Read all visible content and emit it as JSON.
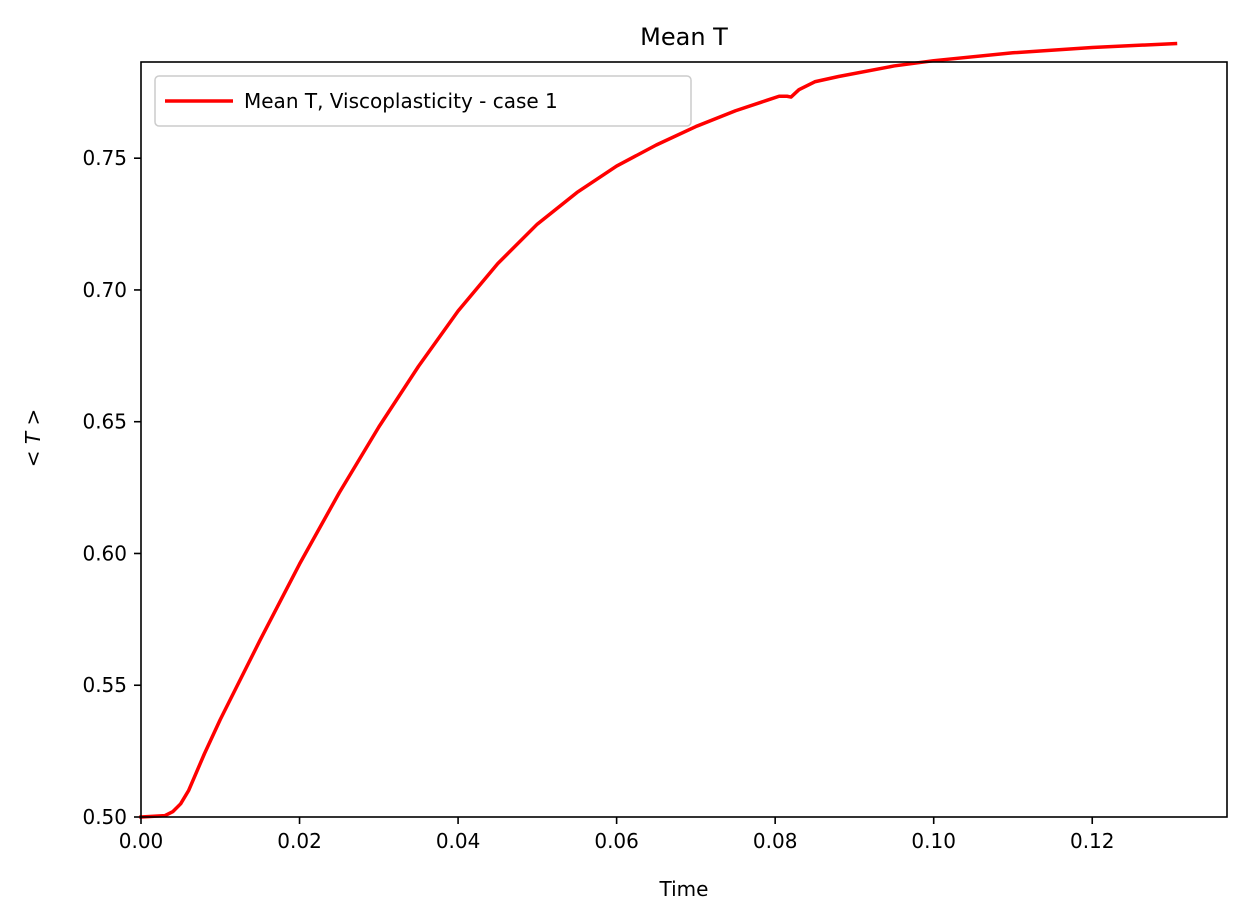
{
  "chart_data": {
    "type": "line",
    "title": "Mean T",
    "xlabel": "Time",
    "ylabel_prefix": "< ",
    "ylabel_var": "T",
    "ylabel_suffix": " >",
    "xlim": [
      0.0,
      0.137
    ],
    "ylim": [
      0.5,
      0.7865
    ],
    "xticks": [
      0.0,
      0.02,
      0.04,
      0.06,
      0.08,
      0.1,
      0.12
    ],
    "xtick_labels": [
      "0.00",
      "0.02",
      "0.04",
      "0.06",
      "0.08",
      "0.10",
      "0.12"
    ],
    "yticks": [
      0.5,
      0.55,
      0.6,
      0.65,
      0.7,
      0.75
    ],
    "ytick_labels": [
      "0.50",
      "0.55",
      "0.60",
      "0.65",
      "0.70",
      "0.75"
    ],
    "grid": false,
    "legend_position": "top-left",
    "series": [
      {
        "name": "Mean T, Viscoplasticity - case 1",
        "color": "#ff0000",
        "x": [
          0.0,
          0.003,
          0.004,
          0.005,
          0.006,
          0.008,
          0.01,
          0.012,
          0.015,
          0.02,
          0.025,
          0.03,
          0.035,
          0.04,
          0.045,
          0.05,
          0.055,
          0.06,
          0.065,
          0.07,
          0.075,
          0.079,
          0.0805,
          0.0815,
          0.082,
          0.083,
          0.085,
          0.088,
          0.095,
          0.1,
          0.11,
          0.12,
          0.1305
        ],
        "y": [
          0.5,
          0.5005,
          0.502,
          0.505,
          0.51,
          0.524,
          0.537,
          0.549,
          0.567,
          0.596,
          0.623,
          0.648,
          0.671,
          0.692,
          0.71,
          0.725,
          0.737,
          0.747,
          0.755,
          0.762,
          0.768,
          0.772,
          0.7735,
          0.7735,
          0.7732,
          0.776,
          0.779,
          0.781,
          0.785,
          0.787,
          0.79,
          0.792,
          0.7935
        ]
      }
    ]
  }
}
